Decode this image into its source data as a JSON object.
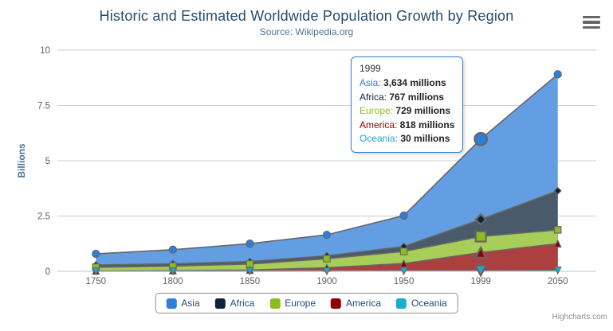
{
  "chart_data": {
    "type": "area",
    "stacking": "normal",
    "title": "Historic and Estimated Worldwide Population Growth by Region",
    "subtitle": "Source: Wikipedia.org",
    "categories": [
      "1750",
      "1800",
      "1850",
      "1900",
      "1950",
      "1999",
      "2050"
    ],
    "xlabel": "",
    "ylabel": "Billions",
    "yticks": [
      0,
      2.5,
      5,
      7.5,
      10
    ],
    "ylim": [
      0,
      10
    ],
    "values_unit": "millions",
    "millions_per_axis_unit": 1000,
    "grid": "horizontal",
    "legend_position": "bottom",
    "hover_index": 5,
    "series": [
      {
        "name": "Asia",
        "color": "#2f7ed8",
        "fill": "#639ee2",
        "marker": "circle",
        "values": [
          502,
          635,
          809,
          947,
          1402,
          3634,
          5268
        ]
      },
      {
        "name": "Africa",
        "color": "#0d233a",
        "fill": "#495a6b",
        "marker": "diamond",
        "values": [
          106,
          107,
          111,
          133,
          221,
          767,
          1766
        ]
      },
      {
        "name": "Europe",
        "color": "#8bbc21",
        "fill": "#a8cd59",
        "marker": "square",
        "values": [
          163,
          203,
          276,
          408,
          547,
          729,
          628
        ]
      },
      {
        "name": "America",
        "color": "#910000",
        "fill": "#ac4040",
        "marker": "triangle",
        "values": [
          18,
          31,
          54,
          156,
          339,
          818,
          1201
        ]
      },
      {
        "name": "Oceania",
        "color": "#1aadce",
        "fill": "#53c2da",
        "marker": "triangle-down",
        "values": [
          2,
          2,
          2,
          6,
          13,
          30,
          46
        ]
      }
    ],
    "style": {
      "area_line_color": "#666666",
      "marker_line_color": "#666666",
      "grid_color": "#cccccc",
      "axis_line_color": "#c0d0e0",
      "axis_label_color": "#606060",
      "title_color": "#274b6d",
      "subtitle_color": "#4d759e",
      "y_title_color": "#4d759e",
      "legend_text_color": "#274b6d",
      "legend_border_color": "#909090",
      "tooltip_border_color": "#2f7ed8"
    }
  },
  "tooltip": {
    "header": "1999",
    "rows": [
      {
        "name": "Asia",
        "color": "#2f7ed8",
        "value": "3,634 millions"
      },
      {
        "name": "Africa",
        "color": "#0d233a",
        "value": "767 millions"
      },
      {
        "name": "Europe",
        "color": "#8bbc21",
        "value": "729 millions"
      },
      {
        "name": "America",
        "color": "#910000",
        "value": "818 millions"
      },
      {
        "name": "Oceania",
        "color": "#1aadce",
        "value": "30 millions"
      }
    ]
  },
  "credits": "Highcharts.com"
}
